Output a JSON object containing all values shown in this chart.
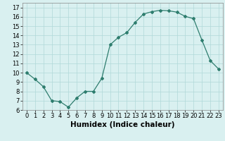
{
  "x": [
    0,
    1,
    2,
    3,
    4,
    5,
    6,
    7,
    8,
    9,
    10,
    11,
    12,
    13,
    14,
    15,
    16,
    17,
    18,
    19,
    20,
    21,
    22,
    23
  ],
  "y": [
    10,
    9.3,
    8.5,
    7.0,
    6.9,
    6.3,
    7.3,
    8.0,
    8.0,
    9.4,
    13.0,
    13.8,
    14.3,
    15.4,
    16.3,
    16.55,
    16.7,
    16.65,
    16.5,
    16.05,
    15.8,
    13.5,
    11.3,
    10.4
  ],
  "line_color": "#2e7d6e",
  "marker": "D",
  "marker_size": 2.0,
  "bg_color": "#d9f0f0",
  "grid_color": "#b0d8d8",
  "xlabel": "Humidex (Indice chaleur)",
  "xlim": [
    -0.5,
    23.5
  ],
  "ylim": [
    6,
    17.5
  ],
  "yticks": [
    6,
    7,
    8,
    9,
    10,
    11,
    12,
    13,
    14,
    15,
    16,
    17
  ],
  "xticks": [
    0,
    1,
    2,
    3,
    4,
    5,
    6,
    7,
    8,
    9,
    10,
    11,
    12,
    13,
    14,
    15,
    16,
    17,
    18,
    19,
    20,
    21,
    22,
    23
  ],
  "tick_fontsize": 6.0,
  "xlabel_fontsize": 7.5,
  "linewidth": 0.9
}
